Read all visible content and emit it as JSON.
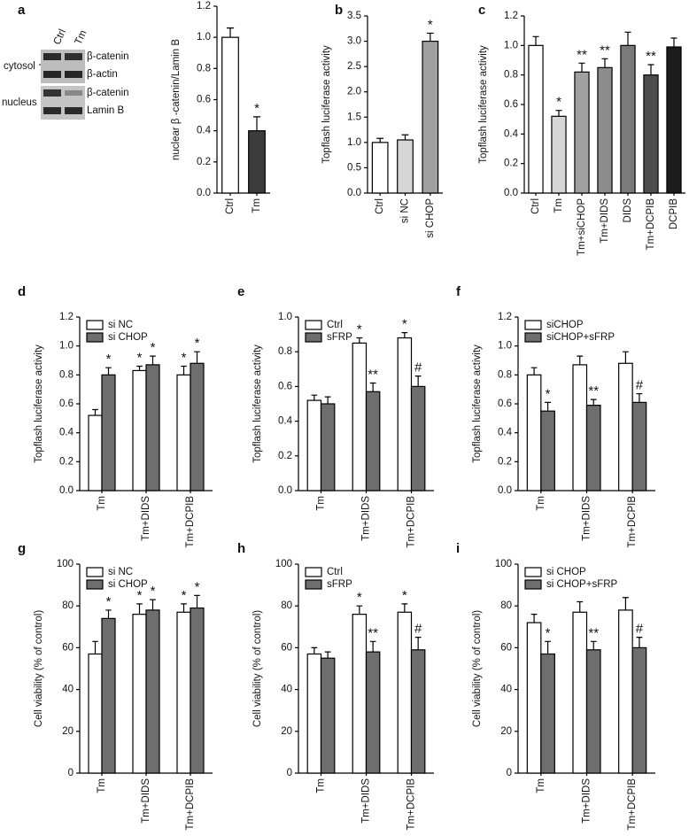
{
  "blot": {
    "lanes": [
      "Ctrl",
      "Tm"
    ],
    "fractions": [
      "cytosol",
      "nucleus"
    ],
    "bands": [
      "β-catenin",
      "β-actin",
      "β-catenin",
      "Lamin B"
    ]
  },
  "chart_data": [
    {
      "type": "bar",
      "panel": "a",
      "ylabel": "nuclear β -catenin/Lamin B",
      "categories": [
        "Ctrl",
        "Tm"
      ],
      "values": [
        1.0,
        0.4
      ],
      "errors": [
        0.06,
        0.09
      ],
      "colors": [
        "#ffffff",
        "#3c3c3c"
      ],
      "annotations": [
        null,
        "*"
      ],
      "ylim": [
        0,
        1.2
      ],
      "yticks": [
        {
          "value": 0,
          "label": "0.0"
        },
        0.2,
        0.4,
        0.6,
        0.8,
        {
          "value": 1,
          "label": "1.0"
        },
        1.2
      ]
    },
    {
      "type": "bar",
      "panel": "b",
      "ylabel": "Topflash luciferase activity",
      "categories": [
        "Ctrl",
        "si NC",
        "si CHOP"
      ],
      "values": [
        1.0,
        1.05,
        3.0
      ],
      "errors": [
        0.08,
        0.1,
        0.16
      ],
      "colors": [
        "#ffffff",
        "#d6d6d6",
        "#a0a0a0"
      ],
      "annotations": [
        null,
        null,
        "*"
      ],
      "ylim": [
        0,
        3.5
      ],
      "yticks": [
        {
          "value": 0,
          "label": "0.0"
        },
        0.5,
        {
          "value": 1,
          "label": "1.0"
        },
        1.5,
        {
          "value": 2,
          "label": "2.0"
        },
        2.5,
        {
          "value": 3,
          "label": "3.0"
        },
        3.5
      ]
    },
    {
      "type": "bar",
      "panel": "c",
      "ylabel": "Topflash luciferase activity",
      "categories": [
        "Ctrl",
        "Tm",
        "Tm+siCHOP",
        "Tm+DIDS",
        "DIDS",
        "Tm+DCPIB",
        "DCPIB"
      ],
      "values": [
        1.0,
        0.52,
        0.82,
        0.85,
        1.0,
        0.8,
        0.99
      ],
      "errors": [
        0.06,
        0.04,
        0.06,
        0.06,
        0.09,
        0.07,
        0.06
      ],
      "colors": [
        "#ffffff",
        "#d6d6d6",
        "#a0a0a0",
        "#8c8c8c",
        "#7a7a7a",
        "#4e4e4e",
        "#1c1c1c"
      ],
      "annotations": [
        null,
        "*",
        "**",
        "**",
        null,
        "**",
        null
      ],
      "ylim": [
        0,
        1.2
      ],
      "yticks": [
        {
          "value": 0,
          "label": "0.0"
        },
        0.2,
        0.4,
        0.6,
        0.8,
        {
          "value": 1,
          "label": "1.0"
        },
        1.2
      ]
    },
    {
      "type": "grouped-bar",
      "panel": "d",
      "ylabel": "Topflash luciferase activity",
      "categories": [
        "Tm",
        "Tm+DIDS",
        "Tm+DCPIB"
      ],
      "legend": "upper left",
      "series": [
        {
          "name": "si NC",
          "color": "#ffffff",
          "values": [
            0.52,
            0.83,
            0.8
          ],
          "errors": [
            0.04,
            0.03,
            0.06
          ],
          "annotations": [
            null,
            "*",
            "*"
          ]
        },
        {
          "name": "si CHOP",
          "color": "#6e6e6e",
          "values": [
            0.8,
            0.87,
            0.88
          ],
          "errors": [
            0.05,
            0.06,
            0.08
          ],
          "annotations": [
            "*",
            "*",
            "*"
          ]
        }
      ],
      "ylim": [
        0,
        1.2
      ],
      "yticks": [
        {
          "value": 0,
          "label": "0.0"
        },
        0.2,
        0.4,
        0.6,
        0.8,
        {
          "value": 1,
          "label": "1.0"
        },
        1.2
      ]
    },
    {
      "type": "grouped-bar",
      "panel": "e",
      "ylabel": "Topflash luciferase activity",
      "categories": [
        "Tm",
        "Tm+DIDS",
        "Tm+DCPIB"
      ],
      "legend": "upper left",
      "series": [
        {
          "name": "Ctrl",
          "color": "#ffffff",
          "values": [
            0.52,
            0.85,
            0.88
          ],
          "errors": [
            0.03,
            0.03,
            0.03
          ],
          "annotations": [
            null,
            "*",
            "*"
          ]
        },
        {
          "name": "sFRP",
          "color": "#6e6e6e",
          "values": [
            0.5,
            0.57,
            0.6
          ],
          "errors": [
            0.04,
            0.05,
            0.06
          ],
          "annotations": [
            null,
            "**",
            "#"
          ]
        }
      ],
      "ylim": [
        0,
        1.0
      ],
      "yticks": [
        {
          "value": 0,
          "label": "0.0"
        },
        0.2,
        0.4,
        0.6,
        0.8,
        {
          "value": 1,
          "label": "1.0"
        }
      ]
    },
    {
      "type": "grouped-bar",
      "panel": "f",
      "ylabel": "Topflash luciferase activity",
      "categories": [
        "Tm",
        "Tm+DIDS",
        "Tm+DCPIB"
      ],
      "legend": "upper left",
      "series": [
        {
          "name": "siCHOP",
          "color": "#ffffff",
          "values": [
            0.8,
            0.87,
            0.88
          ],
          "errors": [
            0.05,
            0.06,
            0.08
          ],
          "annotations": [
            null,
            null,
            null
          ]
        },
        {
          "name": "siCHOP+sFRP",
          "color": "#6e6e6e",
          "values": [
            0.55,
            0.59,
            0.61
          ],
          "errors": [
            0.06,
            0.04,
            0.06
          ],
          "annotations": [
            "*",
            "**",
            "#"
          ]
        }
      ],
      "ylim": [
        0,
        1.2
      ],
      "yticks": [
        {
          "value": 0,
          "label": "0.0"
        },
        0.2,
        0.4,
        0.6,
        0.8,
        {
          "value": 1,
          "label": "1.0"
        },
        1.2
      ]
    },
    {
      "type": "grouped-bar",
      "panel": "g",
      "ylabel": "Cell viability (% of control)",
      "categories": [
        "Tm",
        "Tm+DIDS",
        "Tm+DCPIB"
      ],
      "legend": "upper left",
      "series": [
        {
          "name": "si NC",
          "color": "#ffffff",
          "values": [
            57,
            76,
            77
          ],
          "errors": [
            6,
            5,
            4
          ],
          "annotations": [
            null,
            "*",
            "*"
          ]
        },
        {
          "name": "si CHOP",
          "color": "#6e6e6e",
          "values": [
            74,
            78,
            79
          ],
          "errors": [
            4,
            5,
            6
          ],
          "annotations": [
            "*",
            "*",
            "*"
          ]
        }
      ],
      "ylim": [
        0,
        100
      ],
      "yticks": [
        0,
        20,
        40,
        60,
        80,
        100
      ]
    },
    {
      "type": "grouped-bar",
      "panel": "h",
      "ylabel": "Cell viability (% of control)",
      "categories": [
        "Tm",
        "Tm+DIDS",
        "Tm+DCPIB"
      ],
      "legend": "upper left",
      "series": [
        {
          "name": "Ctrl",
          "color": "#ffffff",
          "values": [
            57,
            76,
            77
          ],
          "errors": [
            3,
            4,
            4
          ],
          "annotations": [
            null,
            "*",
            "*"
          ]
        },
        {
          "name": "sFRP",
          "color": "#6e6e6e",
          "values": [
            55,
            58,
            59
          ],
          "errors": [
            3,
            5,
            6
          ],
          "annotations": [
            null,
            "**",
            "#"
          ]
        }
      ],
      "ylim": [
        0,
        100
      ],
      "yticks": [
        0,
        20,
        40,
        60,
        80,
        100
      ]
    },
    {
      "type": "grouped-bar",
      "panel": "i",
      "ylabel": "Cell viability (% of control)",
      "categories": [
        "Tm",
        "Tm+DIDS",
        "Tm+DCPIB"
      ],
      "legend": "upper left",
      "series": [
        {
          "name": "si CHOP",
          "color": "#ffffff",
          "values": [
            72,
            77,
            78
          ],
          "errors": [
            4,
            5,
            6
          ],
          "annotations": [
            null,
            null,
            null
          ]
        },
        {
          "name": "si CHOP+sFRP",
          "color": "#6e6e6e",
          "values": [
            57,
            59,
            60
          ],
          "errors": [
            6,
            4,
            5
          ],
          "annotations": [
            "*",
            "**",
            "#"
          ]
        }
      ],
      "ylim": [
        0,
        100
      ],
      "yticks": [
        0,
        20,
        40,
        60,
        80,
        100
      ]
    }
  ]
}
